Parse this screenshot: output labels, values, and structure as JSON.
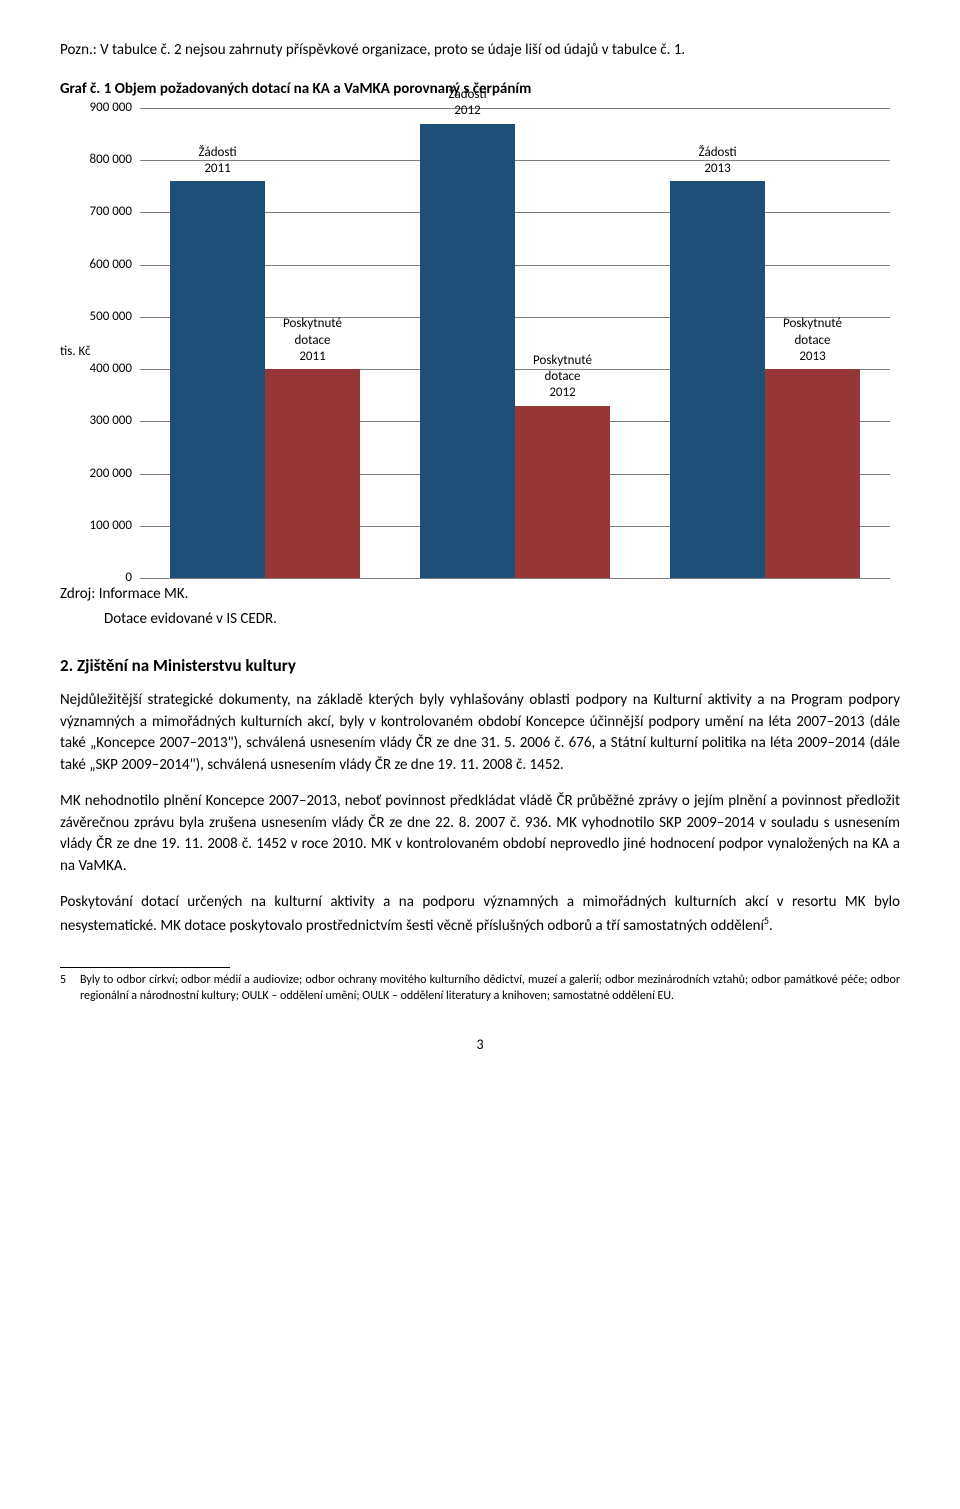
{
  "note": "Pozn.: V tabulce č. 2 nejsou zahrnuty příspěvkové organizace, proto se údaje liší od údajů v tabulce č. 1.",
  "chart": {
    "title": "Graf č. 1 Objem požadovaných dotací na KA a VaMKA porovnaný s čerpáním",
    "ymax": 900000,
    "ystep": 100000,
    "yticks": [
      "0",
      "100 000",
      "200 000",
      "300 000",
      "400 000",
      "500 000",
      "600 000",
      "700 000",
      "800 000",
      "900 000"
    ],
    "unit": "tis. Kč",
    "grid_color": "#7f7f7f",
    "colors": {
      "zadosti": "#1f4e79",
      "dotace": "#953735"
    },
    "groups": [
      {
        "zadosti": 760000,
        "dotace": 400000,
        "zl": "Žádosti\n2011",
        "dl": "Poskytnuté\ndotace\n2011"
      },
      {
        "zadosti": 870000,
        "dotace": 330000,
        "zl": "Žádosti\n2012",
        "dl": "Poskytnuté\ndotace\n2012"
      },
      {
        "zadosti": 760000,
        "dotace": 400000,
        "zl": "Žádosti\n2013",
        "dl": "Poskytnuté\ndotace\n2013"
      }
    ],
    "source_label": "Zdroj:",
    "source1": "Informace MK.",
    "source2": "Dotace evidované v IS CEDR."
  },
  "section_heading": "2. Zjištění na Ministerstvu kultury",
  "para1": "Nejdůležitější strategické dokumenty, na základě kterých byly vyhlašovány oblasti podpory na Kulturní aktivity a na Program podpory významných a mimořádných kulturních akcí, byly v kontrolovaném období Koncepce účinnější podpory umění na léta 2007–2013 (dále také „Koncepce 2007–2013\"), schválená usnesením vlády ČR ze dne 31. 5. 2006 č. 676, a Státní kulturní politika na léta 2009–2014 (dále také „SKP 2009–2014\"), schválená usnesením vlády ČR ze dne 19. 11. 2008 č. 1452.",
  "para2": "MK nehodnotilo plnění Koncepce 2007–2013, neboť povinnost předkládat vládě ČR průběžné zprávy o jejím plnění a povinnost předložit závěrečnou zprávu byla zrušena usnesením vlády ČR ze dne 22. 8. 2007 č. 936. MK vyhodnotilo SKP 2009–2014 v souladu s usnesením vlády ČR ze dne 19. 11. 2008 č. 1452 v roce 2010. MK v kontrolovaném období neprovedlo jiné hodnocení podpor vynaložených na KA a na VaMKA.",
  "para3": "Poskytování dotací určených na kulturní aktivity a na podporu významných a mimořádných kulturních akcí v resortu MK bylo nesystematické. MK dotace poskytovalo prostřednictvím šesti věcně příslušných odborů a tří samostatných oddělení",
  "para3_sup": "5",
  "para3_end": ".",
  "footnote": {
    "num": "5",
    "text": "Byly to odbor církví; odbor médií a audiovize; odbor ochrany movitého kulturního dědictví, muzeí a galerií; odbor mezinárodních vztahů; odbor památkové péče; odbor regionální a národnostní kultury; OULK – oddělení umění; OULK – oddělení literatury a knihoven; samostatné oddělení EU."
  },
  "page_number": "3"
}
